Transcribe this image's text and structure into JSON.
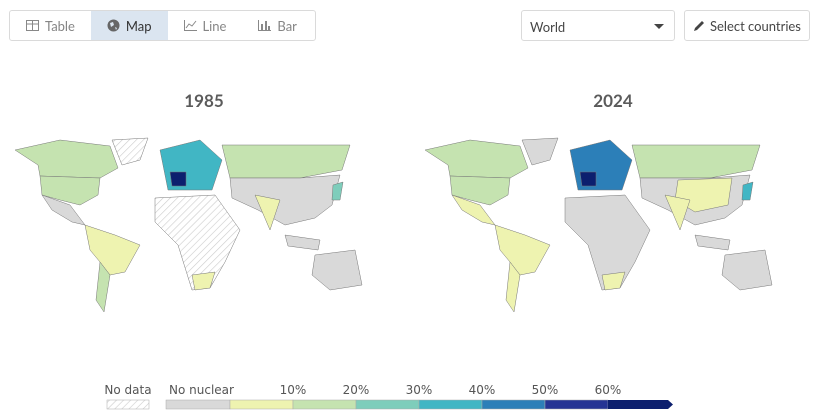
{
  "tabs": [
    "Table",
    "Map",
    "Line",
    "Bar"
  ],
  "region_select": "World",
  "select_button": "Select countries",
  "maps": [
    {
      "title": "1985"
    },
    {
      "title": "2024"
    }
  ],
  "legend": {
    "no_data": "No data",
    "no_nuclear": "No nuclear",
    "ticks": [
      "10%",
      "20%",
      "30%",
      "40%",
      "50%",
      "60%"
    ]
  }
}
